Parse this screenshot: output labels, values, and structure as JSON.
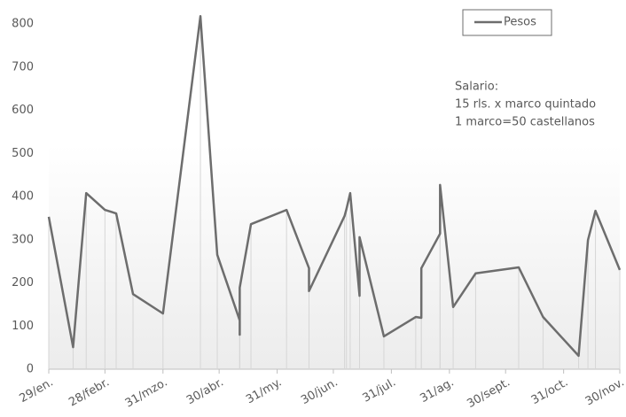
{
  "chart_data": {
    "type": "line",
    "series": [
      {
        "name": "Pesos",
        "color": "#6d6d6d",
        "x": [
          29,
          42,
          49,
          59,
          65,
          74,
          90,
          110,
          119,
          131,
          131,
          131,
          137,
          156,
          168,
          168,
          187,
          188,
          190,
          195,
          195,
          208,
          225,
          228,
          228,
          238,
          238,
          245,
          257,
          280,
          293,
          312,
          317,
          321,
          334
        ],
        "values": [
          353,
          51,
          408,
          369,
          361,
          174,
          129,
          818,
          265,
          113,
          80,
          189,
          336,
          369,
          234,
          181,
          355,
          371,
          408,
          170,
          306,
          76,
          121,
          119,
          234,
          314,
          427,
          144,
          222,
          236,
          121,
          31,
          299,
          367,
          230
        ]
      }
    ],
    "xlim": [
      29,
      334
    ],
    "xticks": [
      {
        "value": 29,
        "label": "29/en."
      },
      {
        "value": 59,
        "label": "28/febr."
      },
      {
        "value": 90,
        "label": "31/mzo."
      },
      {
        "value": 120,
        "label": "30/abr."
      },
      {
        "value": 151,
        "label": "31/my."
      },
      {
        "value": 181,
        "label": "30/jun."
      },
      {
        "value": 212,
        "label": "31/jul."
      },
      {
        "value": 243,
        "label": "31/ag."
      },
      {
        "value": 273,
        "label": "30/sept."
      },
      {
        "value": 304,
        "label": "31/oct."
      },
      {
        "value": 334,
        "label": "30/nov."
      }
    ],
    "ylim": [
      0,
      800
    ],
    "yticks": [
      0,
      100,
      200,
      300,
      400,
      500,
      600,
      700,
      800
    ],
    "annotations": [
      "Salario:",
      "15 rls. x marco quintado",
      "1 marco=50 castellanos"
    ],
    "legend": "top-right"
  }
}
